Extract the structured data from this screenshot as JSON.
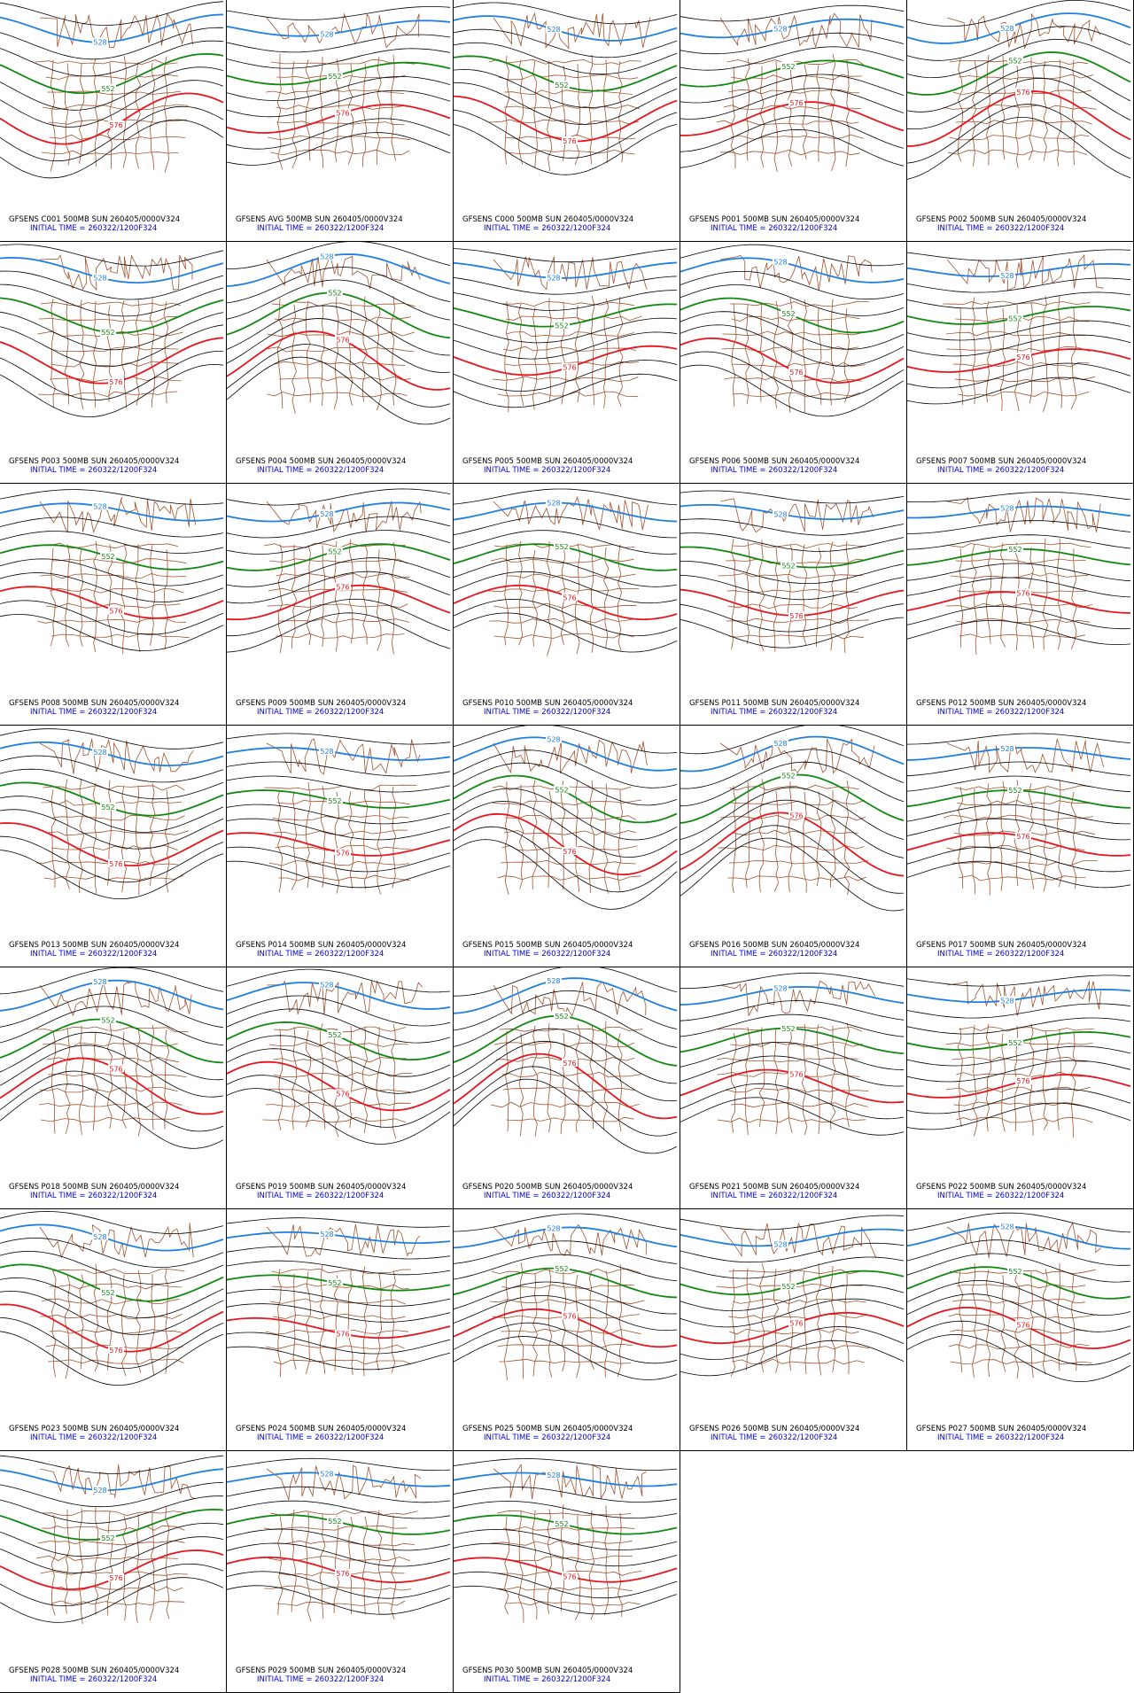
{
  "panels": [
    {
      "title": "GFSENS C001 500MB SUN 260405/0000V324",
      "init": "INITIAL TIME = 260322/1200F324",
      "contours": [
        "528",
        "552",
        "576"
      ]
    },
    {
      "title": "GFSENS AVG 500MB SUN 260405/0000V324",
      "init": "INITIAL TIME = 260322/1200F324",
      "contours": [
        "528",
        "552",
        "576"
      ]
    },
    {
      "title": "GFSENS C000 500MB SUN 260405/0000V324",
      "init": "INITIAL TIME = 260322/1200F324",
      "contours": [
        "528",
        "552",
        "576"
      ]
    },
    {
      "title": "GFSENS P001 500MB SUN 260405/0000V324",
      "init": "INITIAL TIME = 260322/1200F324",
      "contours": [
        "528",
        "552",
        "576"
      ]
    },
    {
      "title": "GFSENS P002 500MB SUN 260405/0000V324",
      "init": "INITIAL TIME = 260322/1200F324",
      "contours": [
        "528",
        "552",
        "576"
      ]
    },
    {
      "title": "GFSENS P003 500MB SUN 260405/0000V324",
      "init": "INITIAL TIME = 260322/1200F324",
      "contours": [
        "528",
        "552",
        "576"
      ]
    },
    {
      "title": "GFSENS P004 500MB SUN 260405/0000V324",
      "init": "INITIAL TIME = 260322/1200F324",
      "contours": [
        "528",
        "552",
        "576"
      ]
    },
    {
      "title": "GFSENS P005 500MB SUN 260405/0000V324",
      "init": "INITIAL TIME = 260322/1200F324",
      "contours": [
        "528",
        "552",
        "576"
      ]
    },
    {
      "title": "GFSENS P006 500MB SUN 260405/0000V324",
      "init": "INITIAL TIME = 260322/1200F324",
      "contours": [
        "528",
        "552",
        "576"
      ]
    },
    {
      "title": "GFSENS P007 500MB SUN 260405/0000V324",
      "init": "INITIAL TIME = 260322/1200F324",
      "contours": [
        "528",
        "552",
        "576"
      ]
    },
    {
      "title": "GFSENS P008 500MB SUN 260405/0000V324",
      "init": "INITIAL TIME = 260322/1200F324",
      "contours": [
        "528",
        "552",
        "576"
      ]
    },
    {
      "title": "GFSENS P009 500MB SUN 260405/0000V324",
      "init": "INITIAL TIME = 260322/1200F324",
      "contours": [
        "528",
        "552",
        "576"
      ]
    },
    {
      "title": "GFSENS P010 500MB SUN 260405/0000V324",
      "init": "INITIAL TIME = 260322/1200F324",
      "contours": [
        "528",
        "552",
        "576"
      ]
    },
    {
      "title": "GFSENS P011 500MB SUN 260405/0000V324",
      "init": "INITIAL TIME = 260322/1200F324",
      "contours": [
        "528",
        "552",
        "576"
      ]
    },
    {
      "title": "GFSENS P012 500MB SUN 260405/0000V324",
      "init": "INITIAL TIME = 260322/1200F324",
      "contours": [
        "528",
        "552",
        "576"
      ]
    },
    {
      "title": "GFSENS P013 500MB SUN 260405/0000V324",
      "init": "INITIAL TIME = 260322/1200F324",
      "contours": [
        "528",
        "552",
        "576"
      ]
    },
    {
      "title": "GFSENS P014 500MB SUN 260405/0000V324",
      "init": "INITIAL TIME = 260322/1200F324",
      "contours": [
        "528",
        "552",
        "576"
      ]
    },
    {
      "title": "GFSENS P015 500MB SUN 260405/0000V324",
      "init": "INITIAL TIME = 260322/1200F324",
      "contours": [
        "528",
        "552",
        "576"
      ]
    },
    {
      "title": "GFSENS P016 500MB SUN 260405/0000V324",
      "init": "INITIAL TIME = 260322/1200F324",
      "contours": [
        "528",
        "552",
        "576"
      ]
    },
    {
      "title": "GFSENS P017 500MB SUN 260405/0000V324",
      "init": "INITIAL TIME = 260322/1200F324",
      "contours": [
        "528",
        "552",
        "576"
      ]
    },
    {
      "title": "GFSENS P018 500MB SUN 260405/0000V324",
      "init": "INITIAL TIME = 260322/1200F324",
      "contours": [
        "528",
        "552",
        "576"
      ]
    },
    {
      "title": "GFSENS P019 500MB SUN 260405/0000V324",
      "init": "INITIAL TIME = 260322/1200F324",
      "contours": [
        "528",
        "552",
        "576"
      ]
    },
    {
      "title": "GFSENS P020 500MB SUN 260405/0000V324",
      "init": "INITIAL TIME = 260322/1200F324",
      "contours": [
        "528",
        "552",
        "576"
      ]
    },
    {
      "title": "GFSENS P021 500MB SUN 260405/0000V324",
      "init": "INITIAL TIME = 260322/1200F324",
      "contours": [
        "528",
        "552",
        "576"
      ]
    },
    {
      "title": "GFSENS P022 500MB SUN 260405/0000V324",
      "init": "INITIAL TIME = 260322/1200F324",
      "contours": [
        "528",
        "552",
        "576"
      ]
    },
    {
      "title": "GFSENS P023 500MB SUN 260405/0000V324",
      "init": "INITIAL TIME = 260322/1200F324",
      "contours": [
        "528",
        "552",
        "576"
      ]
    },
    {
      "title": "GFSENS P024 500MB SUN 260405/0000V324",
      "init": "INITIAL TIME = 260322/1200F324",
      "contours": [
        "528",
        "552",
        "576"
      ]
    },
    {
      "title": "GFSENS P025 500MB SUN 260405/0000V324",
      "init": "INITIAL TIME = 260322/1200F324",
      "contours": [
        "528",
        "552",
        "576"
      ]
    },
    {
      "title": "GFSENS P026 500MB SUN 260405/0000V324",
      "init": "INITIAL TIME = 260322/1200F324",
      "contours": [
        "528",
        "552",
        "576"
      ]
    },
    {
      "title": "GFSENS P027 500MB SUN 260405/0000V324",
      "init": "INITIAL TIME = 260322/1200F324",
      "contours": [
        "528",
        "552",
        "576"
      ]
    },
    {
      "title": "GFSENS P028 500MB SUN 260405/0000V324",
      "init": "INITIAL TIME = 260322/1200F324",
      "contours": [
        "528",
        "552",
        "576"
      ]
    },
    {
      "title": "GFSENS P029 500MB SUN 260405/0000V324",
      "init": "INITIAL TIME = 260322/1200F324",
      "contours": [
        "528",
        "552",
        "576"
      ]
    },
    {
      "title": "GFSENS P030 500MB SUN 260405/0000V324",
      "init": "INITIAL TIME = 260322/1200F324",
      "contours": [
        "528",
        "552",
        "576"
      ]
    }
  ]
}
